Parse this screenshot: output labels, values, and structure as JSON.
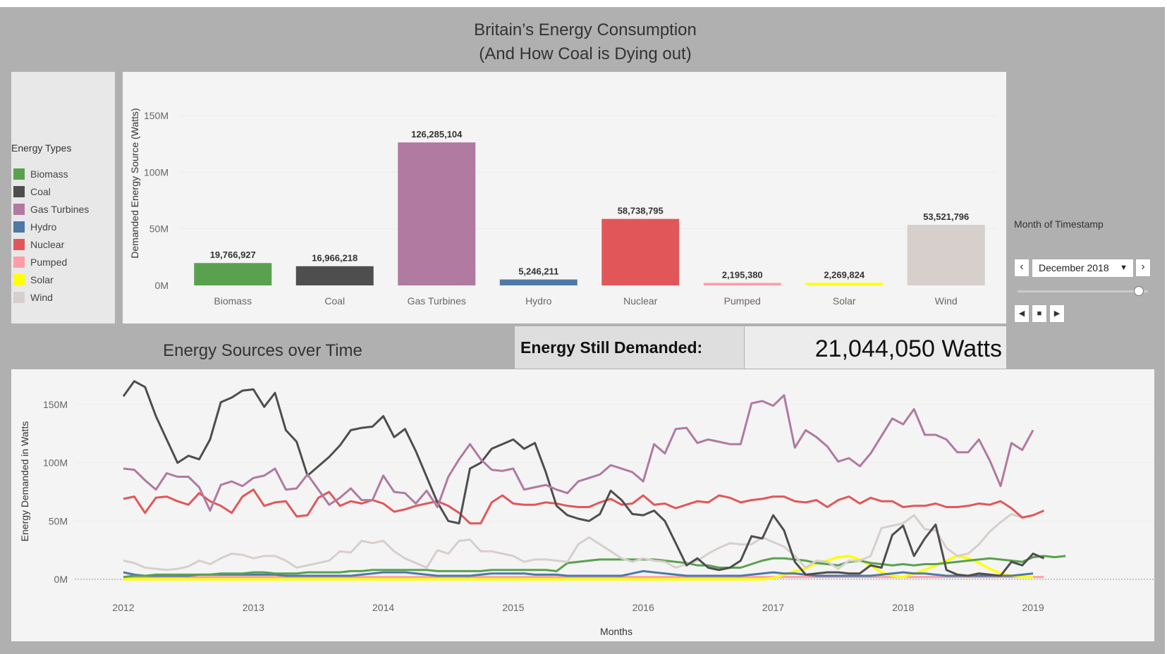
{
  "dashboard": {
    "title_line1": "Britain’s Energy Consumption",
    "title_line2": "(And How Coal is Dying out)"
  },
  "legend": {
    "title": "Energy Types",
    "items": [
      {
        "label": "Biomass",
        "color": "#59a14f"
      },
      {
        "label": "Coal",
        "color": "#4e4e4e"
      },
      {
        "label": "Gas Turbines",
        "color": "#b07aa1"
      },
      {
        "label": "Hydro",
        "color": "#4e79a7"
      },
      {
        "label": "Nuclear",
        "color": "#e15759"
      },
      {
        "label": "Pumped",
        "color": "#ff9da7"
      },
      {
        "label": "Solar",
        "color": "#ffff00"
      },
      {
        "label": "Wind",
        "color": "#d7cfcc"
      }
    ]
  },
  "filter": {
    "title": "Month of Timestamp",
    "selected": "December 2018",
    "prev_icon": "chevron-left-icon",
    "next_icon": "chevron-right-icon",
    "slider_position": 0.99
  },
  "line_section": {
    "title": "Energy Sources over Time"
  },
  "kpi": {
    "label": "Energy Still Demanded:",
    "value": "21,044,050  Watts"
  },
  "chart_data": [
    {
      "type": "bar",
      "ylabel": "Demanded Energy Source (Watts)",
      "yticks": [
        "0M",
        "50M",
        "100M",
        "150M"
      ],
      "ylim": [
        0,
        150000000
      ],
      "categories": [
        "Biomass",
        "Coal",
        "Gas Turbines",
        "Hydro",
        "Nuclear",
        "Pumped",
        "Solar",
        "Wind"
      ],
      "values": [
        19766927,
        16966218,
        126285104,
        5246211,
        58738795,
        2195380,
        2269824,
        53521796
      ],
      "labels": [
        "19,766,927",
        "16,966,218",
        "126,285,104",
        "5,246,211",
        "58,738,795",
        "2,195,380",
        "2,269,824",
        "53,521,796"
      ],
      "colors": [
        "#59a14f",
        "#4e4e4e",
        "#b07aa1",
        "#4e79a7",
        "#e15759",
        "#ff9da7",
        "#ffff00",
        "#d7cfcc"
      ]
    },
    {
      "type": "line",
      "xlabel": "Months",
      "ylabel": "Energy Demanded in Watts",
      "xticks": [
        "2012",
        "2013",
        "2014",
        "2015",
        "2016",
        "2017",
        "2018",
        "2019"
      ],
      "yticks": [
        "0M",
        "50M",
        "100M",
        "150M"
      ],
      "ylim": [
        0,
        160000000
      ],
      "x_start": "2012-01",
      "x_end": "2018-12",
      "series": [
        {
          "name": "Biomass",
          "color": "#59a14f",
          "values": [
            2,
            3,
            3,
            4,
            4,
            4,
            4,
            4,
            4,
            5,
            5,
            5,
            6,
            6,
            5,
            5,
            5,
            6,
            6,
            6,
            6,
            7,
            7,
            8,
            8,
            8,
            8,
            8,
            8,
            7,
            7,
            7,
            7,
            7,
            8,
            8,
            8,
            8,
            8,
            8,
            7,
            14,
            15,
            16,
            17,
            17,
            17,
            17,
            17,
            17,
            16,
            15,
            14,
            12,
            12,
            10,
            10,
            10,
            13,
            16,
            18,
            18,
            17,
            16,
            14,
            13,
            12,
            15,
            16,
            14,
            13,
            12,
            13,
            12,
            13,
            13,
            14,
            15,
            16,
            17,
            18,
            17,
            16,
            15,
            19,
            20,
            19,
            20
          ]
        },
        {
          "name": "Coal",
          "color": "#4e4e4e",
          "values": [
            157,
            170,
            165,
            140,
            120,
            100,
            106,
            103,
            120,
            152,
            156,
            162,
            163,
            148,
            160,
            128,
            118,
            89,
            97,
            105,
            115,
            128,
            130,
            131,
            140,
            122,
            129,
            110,
            88,
            66,
            50,
            48,
            95,
            100,
            112,
            116,
            120,
            112,
            117,
            92,
            63,
            55,
            52,
            50,
            56,
            76,
            68,
            56,
            55,
            59,
            50,
            31,
            12,
            18,
            10,
            8,
            10,
            16,
            37,
            35,
            55,
            42,
            15,
            4,
            5,
            6,
            6,
            5,
            5,
            12,
            10,
            38,
            46,
            20,
            35,
            47,
            8,
            4,
            3,
            5,
            4,
            3,
            15,
            12,
            22,
            18
          ]
        },
        {
          "name": "Gas Turbines",
          "color": "#b07aa1",
          "values": [
            95,
            94,
            85,
            77,
            91,
            88,
            88,
            79,
            59,
            81,
            84,
            80,
            87,
            89,
            95,
            77,
            78,
            90,
            77,
            64,
            70,
            78,
            68,
            68,
            89,
            75,
            74,
            65,
            76,
            62,
            88,
            103,
            116,
            103,
            94,
            93,
            95,
            77,
            79,
            81,
            77,
            74,
            84,
            87,
            90,
            98,
            95,
            92,
            84,
            116,
            108,
            129,
            130,
            117,
            120,
            118,
            116,
            116,
            151,
            153,
            149,
            158,
            113,
            128,
            122,
            114,
            101,
            104,
            97,
            108,
            123,
            138,
            133,
            146,
            124,
            124,
            120,
            109,
            109,
            120,
            102,
            80,
            117,
            111,
            128
          ]
        },
        {
          "name": "Hydro",
          "color": "#4e79a7",
          "values": [
            6,
            4,
            3,
            3,
            3,
            3,
            3,
            4,
            4,
            4,
            4,
            4,
            4,
            4,
            4,
            3,
            3,
            3,
            3,
            3,
            3,
            3,
            4,
            5,
            6,
            6,
            6,
            5,
            4,
            3,
            3,
            3,
            3,
            4,
            5,
            5,
            5,
            5,
            4,
            4,
            4,
            3,
            3,
            3,
            3,
            3,
            3,
            5,
            7,
            6,
            5,
            4,
            3,
            3,
            3,
            3,
            3,
            3,
            4,
            5,
            6,
            5,
            5,
            4,
            3,
            3,
            3,
            3,
            3,
            3,
            4,
            5,
            6,
            5,
            5,
            4,
            3,
            3,
            3,
            3,
            3,
            3,
            3,
            4,
            5
          ]
        },
        {
          "name": "Nuclear",
          "color": "#e15759",
          "values": [
            69,
            71,
            57,
            70,
            71,
            67,
            64,
            74,
            67,
            63,
            57,
            71,
            77,
            63,
            66,
            67,
            54,
            55,
            70,
            75,
            63,
            67,
            65,
            68,
            65,
            58,
            60,
            63,
            65,
            67,
            63,
            57,
            48,
            48,
            66,
            72,
            65,
            64,
            64,
            66,
            65,
            63,
            62,
            62,
            66,
            69,
            64,
            65,
            72,
            64,
            65,
            61,
            64,
            67,
            66,
            72,
            70,
            66,
            68,
            69,
            71,
            71,
            67,
            66,
            68,
            62,
            68,
            71,
            65,
            70,
            67,
            67,
            62,
            63,
            63,
            65,
            62,
            62,
            63,
            65,
            64,
            67,
            61,
            53,
            55,
            59
          ]
        },
        {
          "name": "Pumped",
          "color": "#ff9da7",
          "values": [
            2,
            2,
            2,
            2,
            2,
            2,
            2,
            2,
            2,
            2,
            2,
            2,
            2,
            2,
            2,
            2,
            2,
            2,
            2,
            2,
            2,
            2,
            2,
            2,
            2,
            2,
            2,
            2,
            2,
            2,
            2,
            2,
            2,
            2,
            2,
            2,
            2,
            2,
            2,
            2,
            2,
            2,
            2,
            2,
            2,
            2,
            2,
            2,
            2,
            2,
            2,
            2,
            2,
            2,
            2,
            2,
            2,
            2,
            2,
            2,
            2,
            2,
            2,
            2,
            2,
            2,
            2,
            2,
            2,
            2,
            2,
            2,
            2,
            2,
            2,
            2,
            2,
            2,
            2,
            2,
            2,
            2,
            2,
            2,
            2,
            2
          ]
        },
        {
          "name": "Solar",
          "color": "#ffff00",
          "values": [
            0,
            0,
            0,
            0,
            0,
            0,
            0,
            0,
            0,
            0,
            0,
            0,
            0,
            0,
            0,
            0,
            0,
            0,
            0,
            0,
            0,
            0,
            0,
            0,
            0,
            0,
            0,
            0,
            0,
            0,
            0,
            0,
            0,
            0,
            0,
            0,
            0,
            0,
            0,
            0,
            0,
            0,
            0,
            0,
            0,
            0,
            0,
            0,
            0,
            0,
            0,
            0,
            0,
            0,
            0,
            0,
            0,
            0,
            0,
            0,
            1,
            4,
            7,
            9,
            14,
            16,
            19,
            20,
            17,
            12,
            6,
            3,
            2,
            5,
            8,
            12,
            16,
            20,
            18,
            14,
            9,
            5,
            3,
            2,
            2
          ]
        },
        {
          "name": "Wind",
          "color": "#d7cfcc",
          "values": [
            16,
            14,
            10,
            9,
            8,
            9,
            11,
            16,
            13,
            18,
            22,
            21,
            18,
            20,
            20,
            16,
            10,
            12,
            14,
            16,
            24,
            23,
            33,
            31,
            33,
            24,
            18,
            14,
            10,
            25,
            22,
            33,
            34,
            24,
            24,
            22,
            20,
            15,
            17,
            17,
            16,
            15,
            30,
            36,
            30,
            24,
            18,
            15,
            18,
            16,
            15,
            10,
            13,
            16,
            22,
            27,
            31,
            30,
            30,
            36,
            32,
            28,
            20,
            10,
            16,
            15,
            9,
            16,
            16,
            20,
            44,
            46,
            48,
            55,
            43,
            42,
            27,
            20,
            22,
            30,
            41,
            49,
            56,
            53
          ]
        }
      ]
    }
  ]
}
